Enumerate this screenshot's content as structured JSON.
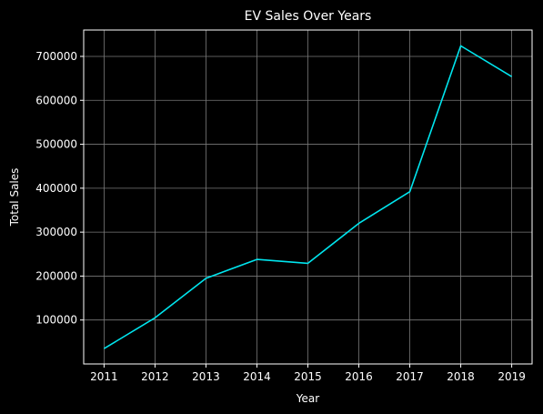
{
  "chart_data": {
    "type": "line",
    "title": "EV Sales Over Years",
    "xlabel": "Year",
    "ylabel": "Total Sales",
    "x": [
      2011,
      2012,
      2013,
      2014,
      2015,
      2016,
      2017,
      2018,
      2019
    ],
    "series": [
      {
        "values": [
          35000,
          105000,
          195000,
          238000,
          229000,
          320000,
          392000,
          724000,
          654000
        ]
      }
    ],
    "xticks": [
      "2011",
      "2012",
      "2013",
      "2014",
      "2015",
      "2016",
      "2017",
      "2018",
      "2019"
    ],
    "yticks": [
      100000,
      200000,
      300000,
      400000,
      500000,
      600000,
      700000
    ],
    "xlim": [
      2010.6,
      2019.4
    ],
    "ylim": [
      0,
      760000
    ],
    "grid": true,
    "colors": {
      "background": "#000000",
      "line": "#00e5ee",
      "grid": "#7a7a7a",
      "text": "#ffffff"
    }
  }
}
